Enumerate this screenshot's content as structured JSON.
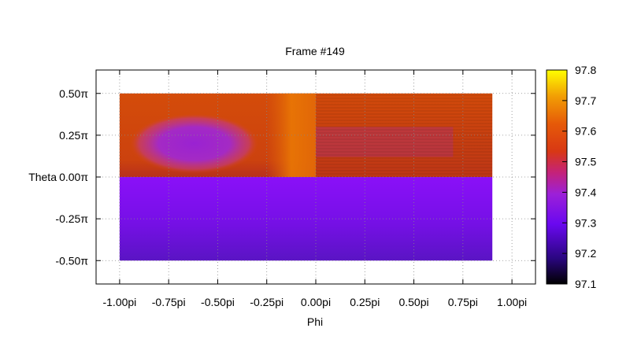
{
  "chart_data": {
    "type": "heatmap",
    "title": "Frame #149",
    "xlabel": "Phi",
    "ylabel": "Theta",
    "xlim": [
      -1.12,
      1.12
    ],
    "ylim": [
      -0.64,
      0.64
    ],
    "x_ticks": [
      {
        "value": -1.0,
        "label": "-1.00pi"
      },
      {
        "value": -0.75,
        "label": "-0.75pi"
      },
      {
        "value": -0.5,
        "label": "-0.50pi"
      },
      {
        "value": -0.25,
        "label": "-0.25pi"
      },
      {
        "value": 0.0,
        "label": "0.00pi"
      },
      {
        "value": 0.25,
        "label": "0.25pi"
      },
      {
        "value": 0.5,
        "label": "0.50pi"
      },
      {
        "value": 0.75,
        "label": "0.75pi"
      },
      {
        "value": 1.0,
        "label": "1.00pi"
      }
    ],
    "y_ticks": [
      {
        "value": 0.5,
        "label": "0.50π"
      },
      {
        "value": 0.25,
        "label": "0.25π"
      },
      {
        "value": 0.0,
        "label": "0.00π"
      },
      {
        "value": -0.25,
        "label": "-0.25π"
      },
      {
        "value": -0.5,
        "label": "-0.50π"
      }
    ],
    "grid": true,
    "data_extent": {
      "phi": [
        -1.0,
        0.9
      ],
      "theta": [
        -0.5,
        0.5
      ]
    },
    "colorbar": {
      "range": [
        97.1,
        97.8
      ],
      "ticks": [
        {
          "value": 97.8,
          "label": "97.8"
        },
        {
          "value": 97.7,
          "label": "97.7"
        },
        {
          "value": 97.6,
          "label": "97.6"
        },
        {
          "value": 97.5,
          "label": "97.5"
        },
        {
          "value": 97.4,
          "label": "97.4"
        },
        {
          "value": 97.3,
          "label": "97.3"
        },
        {
          "value": 97.2,
          "label": "97.2"
        },
        {
          "value": 97.1,
          "label": "97.1"
        }
      ],
      "palette": "black-blue-purple-red-orange-yellow"
    },
    "regions": [
      {
        "phi": [
          -1.0,
          0.0
        ],
        "theta": [
          0.0,
          0.5
        ],
        "value": 97.52,
        "note_color": "#d84808"
      },
      {
        "phi": [
          -0.85,
          -0.35
        ],
        "theta": [
          0.08,
          0.35
        ],
        "value": 97.36,
        "note_color": "#a830b8"
      },
      {
        "phi": [
          -0.25,
          0.0
        ],
        "theta": [
          0.0,
          0.5
        ],
        "value": 97.57
      },
      {
        "phi": [
          0.0,
          0.9
        ],
        "theta": [
          0.0,
          0.5
        ],
        "value": 97.5
      },
      {
        "phi": [
          0.05,
          0.7
        ],
        "theta": [
          0.15,
          0.3
        ],
        "value": 97.44
      },
      {
        "phi": [
          -1.0,
          0.9
        ],
        "theta": [
          -0.5,
          0.0
        ],
        "value": 97.28
      }
    ]
  }
}
